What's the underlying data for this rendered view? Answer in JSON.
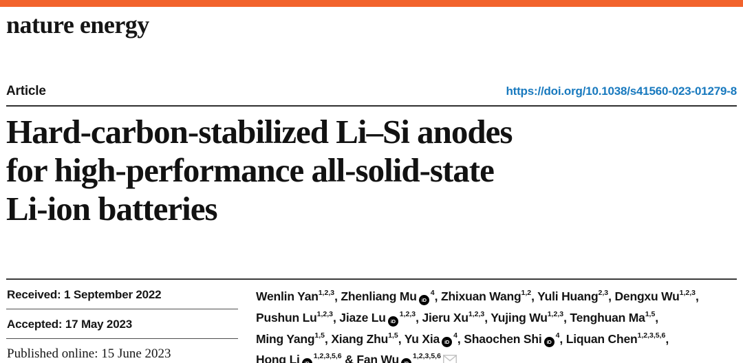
{
  "journal": {
    "name": "nature energy",
    "brand_bar_color": "#F2632C"
  },
  "article": {
    "type_label": "Article",
    "doi_url": "https://doi.org/10.1038/s41560-023-01279-8",
    "doi_color": "#1879BE"
  },
  "title": {
    "lines": [
      "Hard-carbon-stabilized Li–Si anodes",
      "for high-performance all-solid-state",
      "Li-ion batteries"
    ]
  },
  "dates": {
    "received": "Received: 1 September 2022",
    "accepted": "Accepted: 17 May 2023",
    "published": "Published online: 15 June 2023"
  },
  "icons": {
    "orcid": "orcid-id-badge",
    "orcid_glyph": "iD",
    "corresponding_email": "envelope"
  },
  "authors": {
    "lines": [
      [
        {
          "name": "Wenlin Yan",
          "sup": "1,2,3",
          "orcid": false,
          "sep": ", "
        },
        {
          "name": "Zhenliang Mu",
          "sup": "4",
          "orcid": true,
          "sep": ", "
        },
        {
          "name": "Zhixuan Wang",
          "sup": "1,2",
          "orcid": false,
          "sep": ", "
        },
        {
          "name": "Yuli Huang",
          "sup": "2,3",
          "orcid": false,
          "sep": ", "
        },
        {
          "name": "Dengxu Wu",
          "sup": "1,2,3",
          "orcid": false,
          "sep": ","
        }
      ],
      [
        {
          "name": "Pushun Lu",
          "sup": "1,2,3",
          "orcid": false,
          "sep": ", "
        },
        {
          "name": "Jiaze Lu",
          "sup": "1,2,3",
          "orcid": true,
          "sep": ", "
        },
        {
          "name": "Jieru Xu",
          "sup": "1,2,3",
          "orcid": false,
          "sep": ", "
        },
        {
          "name": "Yujing Wu",
          "sup": "1,2,3",
          "orcid": false,
          "sep": ", "
        },
        {
          "name": "Tenghuan Ma",
          "sup": "1,5",
          "orcid": false,
          "sep": ","
        }
      ],
      [
        {
          "name": "Ming Yang",
          "sup": "1,5",
          "orcid": false,
          "sep": ", "
        },
        {
          "name": "Xiang Zhu",
          "sup": "1,5",
          "orcid": false,
          "sep": ", "
        },
        {
          "name": "Yu Xia",
          "sup": "4",
          "orcid": true,
          "sep": ", "
        },
        {
          "name": "Shaochen Shi",
          "sup": "4",
          "orcid": true,
          "sep": ", "
        },
        {
          "name": "Liquan Chen",
          "sup": "1,2,3,5,6",
          "orcid": false,
          "sep": ","
        }
      ],
      [
        {
          "name": "Hong Li",
          "sup": "1,2,3,5,6",
          "orcid": true,
          "sep": " & "
        },
        {
          "name": "Fan Wu",
          "sup": "1,2,3,5,6",
          "orcid": true,
          "sep": "",
          "email": true
        }
      ]
    ]
  }
}
